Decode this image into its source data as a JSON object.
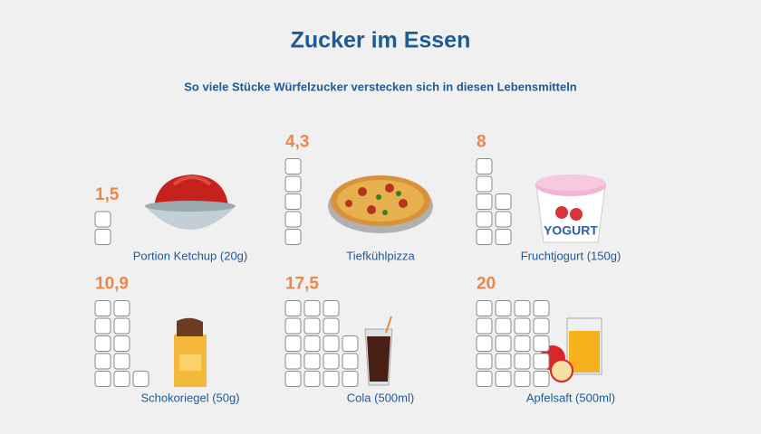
{
  "chart_data": {
    "type": "pictograph",
    "title": "Zucker im Essen",
    "subtitle": "So viele Stücke Würfelzucker verstecken sich in diesen Lebensmitteln",
    "categories": [
      "Portion Ketchup (20g)",
      "Tiefkühlpizza",
      "Fruchtjogurt (150g)",
      "Schokoriegel (50g)",
      "Cola (500ml)",
      "Apfelsaft (500ml)"
    ],
    "values": [
      1.5,
      4.3,
      8,
      10.9,
      17.5,
      20
    ],
    "value_labels": [
      "1,5",
      "4,3",
      "8",
      "10,9",
      "17,5",
      "20"
    ],
    "color": "#e9884a"
  }
}
